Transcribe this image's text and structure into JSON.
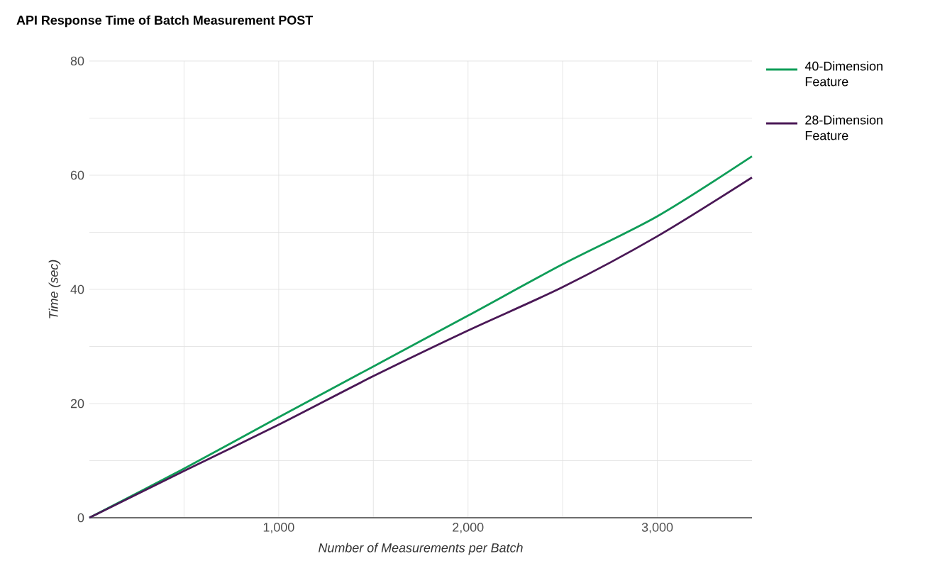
{
  "chart_data": {
    "type": "line",
    "title": "API Response Time of Batch Measurement POST",
    "xlabel": "Number of Measurements per Batch",
    "ylabel": "Time (sec)",
    "x": [
      0,
      500,
      1000,
      1500,
      2000,
      2500,
      3000,
      3500
    ],
    "series": [
      {
        "name": "40-Dimension Feature",
        "color": "#0f9d58",
        "values": [
          0,
          8.6,
          17.6,
          26.5,
          35.4,
          44.4,
          52.8,
          63.3
        ]
      },
      {
        "name": "28-Dimension Feature",
        "color": "#4a1856",
        "values": [
          0,
          8.2,
          16.3,
          24.8,
          32.8,
          40.4,
          49.3,
          59.6
        ]
      }
    ],
    "xlim": [
      0,
      3500
    ],
    "ylim": [
      0,
      80
    ],
    "xticks": [
      {
        "value": 500,
        "label": null
      },
      {
        "value": 1000,
        "label": "1,000"
      },
      {
        "value": 1500,
        "label": null
      },
      {
        "value": 2000,
        "label": "2,000"
      },
      {
        "value": 2500,
        "label": null
      },
      {
        "value": 3000,
        "label": "3,000"
      }
    ],
    "yticks": [
      0,
      {
        "value": 10,
        "label": null
      },
      20,
      {
        "value": 30,
        "label": null
      },
      40,
      {
        "value": 50,
        "label": null
      },
      60,
      {
        "value": 70,
        "label": null
      },
      80
    ],
    "grid": true,
    "legend": "top right",
    "marker": "none",
    "line_style": "solid"
  }
}
